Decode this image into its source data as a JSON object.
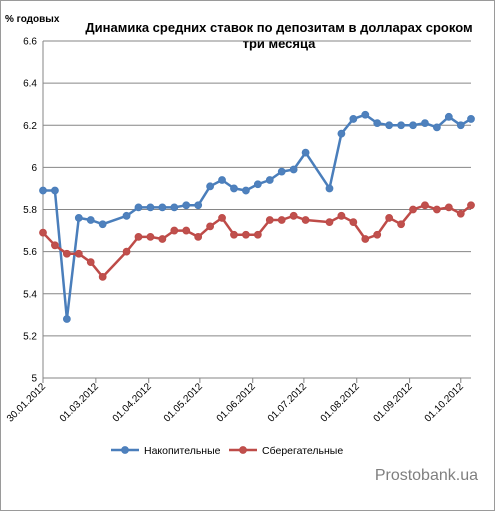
{
  "chart_data": {
    "type": "line",
    "title_lines": [
      "Динамика средних ставок по депозитам в долларах сроком",
      "три месяца"
    ],
    "ylabel": "% годовых",
    "xlabel": "",
    "ylim": [
      5.0,
      6.6
    ],
    "yticks": [
      "6.6",
      "6.4",
      "6.2",
      "6",
      "5.8",
      "5.6",
      "5.4",
      "5.2",
      "5"
    ],
    "ytick_values": [
      6.6,
      6.4,
      6.2,
      6.0,
      5.8,
      5.6,
      5.4,
      5.2,
      5.0
    ],
    "grid": true,
    "legend_position": "bottom",
    "watermark": "Prostobank.ua",
    "xlim": [
      "2012-01-30",
      "2012-10-07"
    ],
    "xticks": [
      {
        "label": "30.01.2012",
        "date": "2012-01-30"
      },
      {
        "label": "01.03.2012",
        "date": "2012-03-01"
      },
      {
        "label": "01.04.2012",
        "date": "2012-04-01"
      },
      {
        "label": "01.05.2012",
        "date": "2012-05-01"
      },
      {
        "label": "01.06.2012",
        "date": "2012-06-01"
      },
      {
        "label": "01.07.2012",
        "date": "2012-07-01"
      },
      {
        "label": "01.08.2012",
        "date": "2012-08-01"
      },
      {
        "label": "01.09.2012",
        "date": "2012-09-01"
      },
      {
        "label": "01.10.2012",
        "date": "2012-10-01"
      }
    ],
    "series": [
      {
        "name": "Накопительные",
        "color": "#4a7ebb",
        "marker_fill": "#4f81bd",
        "points": [
          {
            "x": "2012-01-30",
            "y": 5.89
          },
          {
            "x": "2012-02-06",
            "y": 5.89
          },
          {
            "x": "2012-02-13",
            "y": 5.28
          },
          {
            "x": "2012-02-20",
            "y": 5.76
          },
          {
            "x": "2012-02-27",
            "y": 5.75
          },
          {
            "x": "2012-03-05",
            "y": 5.73
          },
          {
            "x": "2012-03-19",
            "y": 5.77
          },
          {
            "x": "2012-03-26",
            "y": 5.81
          },
          {
            "x": "2012-04-02",
            "y": 5.81
          },
          {
            "x": "2012-04-09",
            "y": 5.81
          },
          {
            "x": "2012-04-16",
            "y": 5.81
          },
          {
            "x": "2012-04-23",
            "y": 5.82
          },
          {
            "x": "2012-04-30",
            "y": 5.82
          },
          {
            "x": "2012-05-07",
            "y": 5.91
          },
          {
            "x": "2012-05-14",
            "y": 5.94
          },
          {
            "x": "2012-05-21",
            "y": 5.9
          },
          {
            "x": "2012-05-28",
            "y": 5.89
          },
          {
            "x": "2012-06-04",
            "y": 5.92
          },
          {
            "x": "2012-06-11",
            "y": 5.94
          },
          {
            "x": "2012-06-18",
            "y": 5.98
          },
          {
            "x": "2012-06-25",
            "y": 5.99
          },
          {
            "x": "2012-07-02",
            "y": 6.07
          },
          {
            "x": "2012-07-16",
            "y": 5.9
          },
          {
            "x": "2012-07-23",
            "y": 6.16
          },
          {
            "x": "2012-07-30",
            "y": 6.23
          },
          {
            "x": "2012-08-06",
            "y": 6.25
          },
          {
            "x": "2012-08-13",
            "y": 6.21
          },
          {
            "x": "2012-08-20",
            "y": 6.2
          },
          {
            "x": "2012-08-27",
            "y": 6.2
          },
          {
            "x": "2012-09-03",
            "y": 6.2
          },
          {
            "x": "2012-09-10",
            "y": 6.21
          },
          {
            "x": "2012-09-17",
            "y": 6.19
          },
          {
            "x": "2012-09-24",
            "y": 6.24
          },
          {
            "x": "2012-10-01",
            "y": 6.2
          },
          {
            "x": "2012-10-07",
            "y": 6.23
          }
        ]
      },
      {
        "name": "Сберегательные",
        "color": "#be4b48",
        "marker_fill": "#c0504d",
        "points": [
          {
            "x": "2012-01-30",
            "y": 5.69
          },
          {
            "x": "2012-02-06",
            "y": 5.63
          },
          {
            "x": "2012-02-13",
            "y": 5.59
          },
          {
            "x": "2012-02-20",
            "y": 5.59
          },
          {
            "x": "2012-02-27",
            "y": 5.55
          },
          {
            "x": "2012-03-05",
            "y": 5.48
          },
          {
            "x": "2012-03-19",
            "y": 5.6
          },
          {
            "x": "2012-03-26",
            "y": 5.67
          },
          {
            "x": "2012-04-02",
            "y": 5.67
          },
          {
            "x": "2012-04-09",
            "y": 5.66
          },
          {
            "x": "2012-04-16",
            "y": 5.7
          },
          {
            "x": "2012-04-23",
            "y": 5.7
          },
          {
            "x": "2012-04-30",
            "y": 5.67
          },
          {
            "x": "2012-05-07",
            "y": 5.72
          },
          {
            "x": "2012-05-14",
            "y": 5.76
          },
          {
            "x": "2012-05-21",
            "y": 5.68
          },
          {
            "x": "2012-05-28",
            "y": 5.68
          },
          {
            "x": "2012-06-04",
            "y": 5.68
          },
          {
            "x": "2012-06-11",
            "y": 5.75
          },
          {
            "x": "2012-06-18",
            "y": 5.75
          },
          {
            "x": "2012-06-25",
            "y": 5.77
          },
          {
            "x": "2012-07-02",
            "y": 5.75
          },
          {
            "x": "2012-07-16",
            "y": 5.74
          },
          {
            "x": "2012-07-23",
            "y": 5.77
          },
          {
            "x": "2012-07-30",
            "y": 5.74
          },
          {
            "x": "2012-08-06",
            "y": 5.66
          },
          {
            "x": "2012-08-13",
            "y": 5.68
          },
          {
            "x": "2012-08-20",
            "y": 5.76
          },
          {
            "x": "2012-08-27",
            "y": 5.73
          },
          {
            "x": "2012-09-03",
            "y": 5.8
          },
          {
            "x": "2012-09-10",
            "y": 5.82
          },
          {
            "x": "2012-09-17",
            "y": 5.8
          },
          {
            "x": "2012-09-24",
            "y": 5.81
          },
          {
            "x": "2012-10-01",
            "y": 5.78
          },
          {
            "x": "2012-10-07",
            "y": 5.82
          }
        ]
      }
    ]
  }
}
